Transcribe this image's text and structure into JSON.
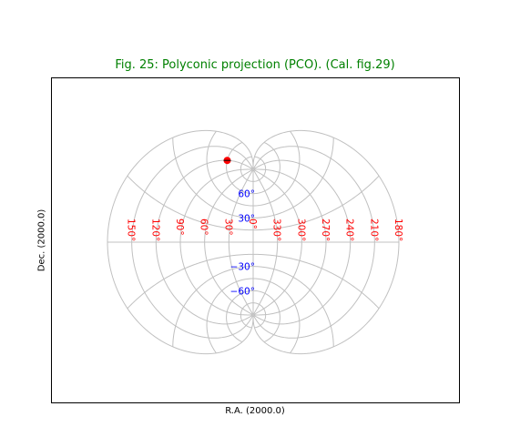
{
  "chart": {
    "title": "Fig. 25: Polyconic projection (PCO). (Cal. fig.29)",
    "xlabel": "R.A. (2000.0)",
    "ylabel": "Dec. (2000.0)"
  },
  "chart_data": {
    "type": "scatter",
    "projection": "polyconic",
    "title": "Fig. 25: Polyconic projection (PCO). (Cal. fig.29)",
    "xlabel": "R.A. (2000.0)",
    "ylabel": "Dec. (2000.0)",
    "ra_meridians_deg": [
      -180,
      -150,
      -120,
      -90,
      -60,
      -30,
      0,
      30,
      60,
      90,
      120,
      150,
      180
    ],
    "dec_parallels_deg": [
      -90,
      -75,
      -60,
      -45,
      -30,
      -15,
      0,
      15,
      30,
      45,
      60,
      75,
      90
    ],
    "ra_tick_labels": [
      "150°",
      "120°",
      "90°",
      "60°",
      "30°",
      "0°",
      "330°",
      "300°",
      "270°",
      "240°",
      "210°",
      "180°"
    ],
    "ra_tick_values": [
      150,
      120,
      90,
      60,
      30,
      0,
      330,
      300,
      270,
      240,
      210,
      180
    ],
    "dec_tick_labels": [
      "60°",
      "30°",
      "−30°",
      "−60°"
    ],
    "dec_tick_values": [
      60,
      30,
      -30,
      -60
    ],
    "marker": {
      "ra": 120,
      "dec": 60,
      "color": "#ff0000"
    },
    "grid": true,
    "colors": {
      "grid": "#c0c0c0",
      "ra_labels": "#ff0000",
      "dec_labels": "#0000ff",
      "title": "#008000"
    }
  }
}
